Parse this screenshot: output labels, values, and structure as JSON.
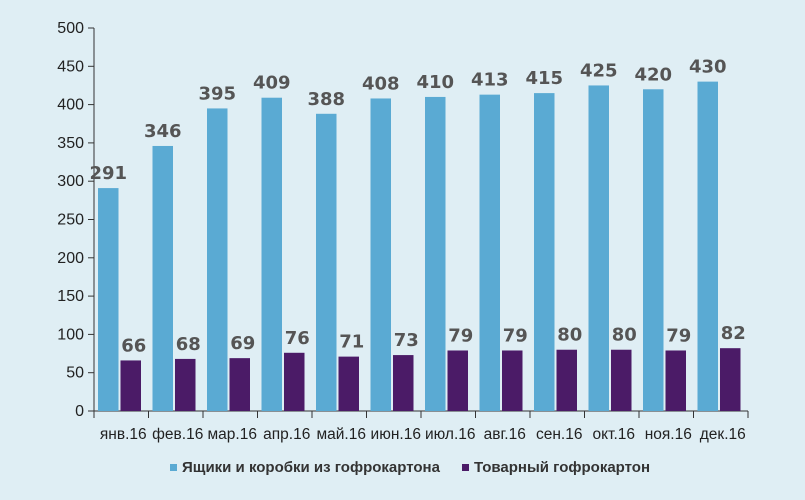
{
  "chart_data": {
    "type": "bar",
    "categories": [
      "янв.16",
      "фев.16",
      "мар.16",
      "апр.16",
      "май.16",
      "июн.16",
      "июл.16",
      "авг.16",
      "сен.16",
      "окт.16",
      "ноя.16",
      "дек.16"
    ],
    "series": [
      {
        "name": "Ящики и коробки из гофрокартона",
        "color": "#5aaad3",
        "values": [
          291,
          346,
          395,
          409,
          388,
          408,
          410,
          413,
          415,
          425,
          420,
          430
        ]
      },
      {
        "name": "Товарный гофрокартон",
        "color": "#4b1b67",
        "values": [
          66,
          68,
          69,
          76,
          71,
          73,
          79,
          79,
          80,
          80,
          79,
          82
        ]
      }
    ],
    "yticks": [
      0,
      50,
      100,
      150,
      200,
      250,
      300,
      350,
      400,
      450,
      500
    ],
    "ylim": [
      0,
      500
    ],
    "title": "",
    "xlabel": "",
    "ylabel": "",
    "grid": false,
    "legend_position": "bottom-center"
  }
}
